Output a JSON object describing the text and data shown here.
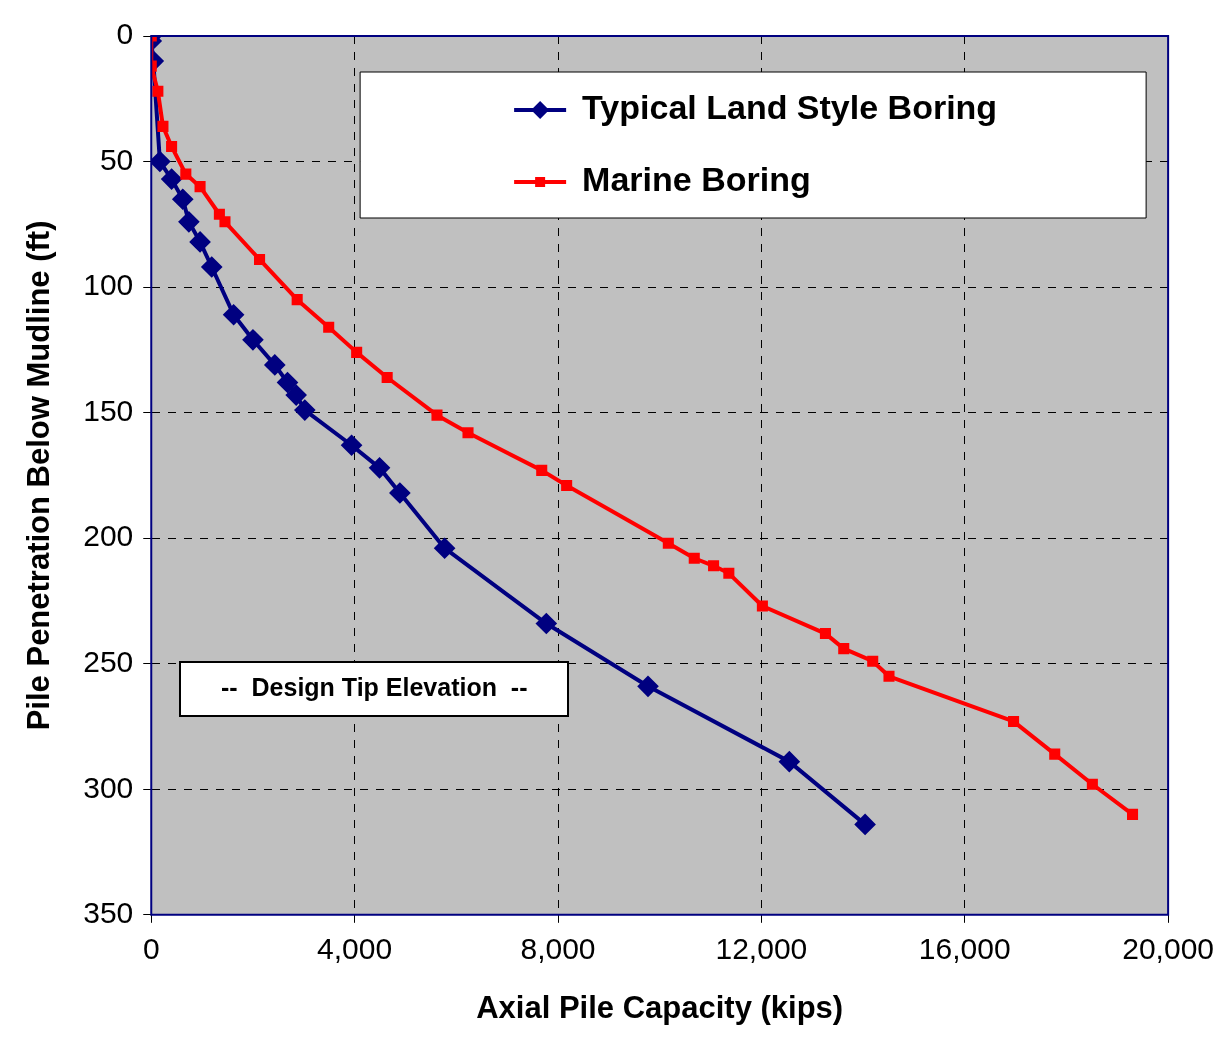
{
  "chart_data": {
    "type": "line",
    "xlabel": "Axial Pile Capacity (kips)",
    "ylabel": "Pile Penetration Below Mudline (ft)",
    "xlim": [
      0,
      20000
    ],
    "xticks": [
      0,
      {
        "value": 4000,
        "label": "4,000"
      },
      {
        "value": 8000,
        "label": "8,000"
      },
      {
        "value": 12000,
        "label": "12,000"
      },
      {
        "value": 16000,
        "label": "16,000"
      },
      {
        "value": 20000,
        "label": "20,000"
      }
    ],
    "ylim": [
      350,
      0
    ],
    "yticks": [
      0,
      50,
      100,
      150,
      200,
      250,
      300,
      350
    ],
    "grid": true,
    "legend": "top right",
    "line_style": "solid",
    "annotations": [
      "--  Design Tip Elevation  --"
    ],
    "series": [
      {
        "name": "Typical Land Style Boring",
        "color": "#000080",
        "marker": "diamond",
        "x": [
          0,
          0,
          40,
          170,
          400,
          620,
          740,
          960,
          1190,
          1620,
          2000,
          2430,
          2680,
          2850,
          3020,
          3940,
          4490,
          4890,
          5770,
          7770,
          9770,
          12550,
          14040
        ],
        "values": [
          0,
          2,
          10,
          50,
          57,
          65,
          74,
          82,
          92,
          111,
          121,
          131,
          138,
          143,
          149,
          163,
          172,
          182,
          204,
          234,
          259,
          289,
          314
        ]
      },
      {
        "name": "Marine Boring",
        "color": "#ff0000",
        "marker": "square",
        "x": [
          0,
          0,
          130,
          230,
          400,
          680,
          960,
          1340,
          1450,
          2130,
          2870,
          3490,
          4040,
          4640,
          5620,
          6230,
          7680,
          8170,
          10170,
          10680,
          11060,
          11360,
          12020,
          13260,
          13620,
          14190,
          14510,
          16960,
          17770,
          18510,
          19300
        ],
        "values": [
          0,
          12,
          22,
          36,
          44,
          55,
          60,
          71,
          74,
          89,
          105,
          116,
          126,
          136,
          151,
          158,
          173,
          179,
          202,
          208,
          211,
          214,
          227,
          238,
          244,
          249,
          255,
          273,
          286,
          298,
          310
        ]
      }
    ]
  }
}
